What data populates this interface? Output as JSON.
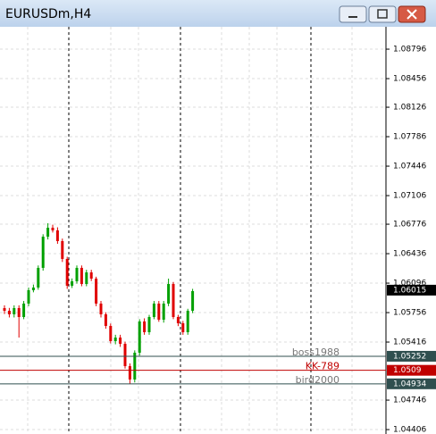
{
  "chart_data": {
    "type": "candlestick",
    "title": "EURUSDm,H4",
    "open": [
      1.05808,
      1.05777,
      1.05736,
      1.05808,
      1.05705,
      1.0586,
      1.06014,
      1.06045,
      1.06272,
      1.06632,
      1.06735,
      1.06705,
      1.06581,
      1.06375,
      1.06066,
      1.06117,
      1.06272,
      1.06086,
      1.0622,
      1.06148,
      1.0586,
      1.05736,
      1.05602,
      1.05427,
      1.05468,
      1.05396,
      1.05138,
      1.04984,
      1.05293,
      1.05654,
      1.0553,
      1.05705,
      1.0586,
      1.05674,
      1.0586,
      1.06086,
      1.05705,
      1.05633,
      1.0553,
      1.05777
    ],
    "high": [
      1.0584,
      1.0581,
      1.0584,
      1.0584,
      1.0589,
      1.06045,
      1.0608,
      1.063,
      1.0666,
      1.06787,
      1.0677,
      1.0674,
      1.0661,
      1.064,
      1.0615,
      1.063,
      1.063,
      1.0625,
      1.0625,
      1.0617,
      1.0589,
      1.0576,
      1.0563,
      1.055,
      1.055,
      1.0542,
      1.0517,
      1.0532,
      1.0568,
      1.0569,
      1.0573,
      1.0589,
      1.0589,
      1.0589,
      1.06148,
      1.0611,
      1.0573,
      1.0566,
      1.058,
      1.0603
    ],
    "low": [
      1.0574,
      1.057,
      1.057,
      1.05468,
      1.0568,
      1.0583,
      1.0599,
      1.0602,
      1.0624,
      1.066,
      1.0668,
      1.0655,
      1.0634,
      1.0603,
      1.0604,
      1.0609,
      1.0606,
      1.0606,
      1.0612,
      1.0583,
      1.057,
      1.0557,
      1.054,
      1.0539,
      1.0536,
      1.0511,
      1.04932,
      1.0495,
      1.0526,
      1.055,
      1.055,
      1.0568,
      1.0565,
      1.0564,
      1.0583,
      1.0568,
      1.056,
      1.055,
      1.055,
      1.0575
    ],
    "close": [
      1.05777,
      1.05736,
      1.05808,
      1.05705,
      1.0586,
      1.06014,
      1.06045,
      1.06272,
      1.06632,
      1.06735,
      1.06705,
      1.06581,
      1.06375,
      1.06066,
      1.06117,
      1.06272,
      1.06086,
      1.0622,
      1.06148,
      1.0586,
      1.05736,
      1.05602,
      1.05427,
      1.05468,
      1.05396,
      1.05138,
      1.04984,
      1.05293,
      1.05654,
      1.0553,
      1.05705,
      1.0586,
      1.05674,
      1.0586,
      1.06086,
      1.05705,
      1.05633,
      1.0553,
      1.05777,
      1.06004
    ],
    "up_color": "#00a000",
    "down_color": "#e00000",
    "ylim": [
      1.04355,
      1.09054
    ],
    "yticks": [
      1.08796,
      1.08456,
      1.08126,
      1.07786,
      1.07446,
      1.07106,
      1.06776,
      1.06436,
      1.06096,
      1.05756,
      1.05416,
      1.04746,
      1.04406
    ],
    "grid": true,
    "last_price": 1.06015,
    "levels": [
      {
        "name": "boss1988",
        "value": 1.05252,
        "color": "#2f4f4f"
      },
      {
        "name": "KK-789",
        "value": 1.0509,
        "color": "#c00000"
      },
      {
        "name": "bird2000",
        "value": 1.04934,
        "color": "#2f4f4f"
      }
    ]
  }
}
